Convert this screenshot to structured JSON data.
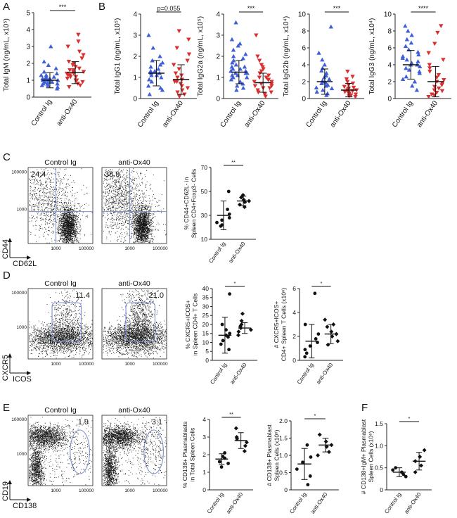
{
  "figure": {
    "panel_labels": [
      "A",
      "B",
      "C",
      "D",
      "E",
      "F"
    ],
    "colors": {
      "control": "#3f5fd8",
      "treated": "#d83030",
      "black": "#111111",
      "gate": "#7d8fcf"
    }
  },
  "chart_data": [
    {
      "panel": "A",
      "type": "scatter",
      "ylabel": "Total IgM (ng/mL, x10⁵)",
      "categories": [
        "Control Ig",
        "anti-Ox40"
      ],
      "ylim": [
        0,
        5
      ],
      "yticks": [
        "0",
        "1",
        "2",
        "3",
        "4",
        "5"
      ],
      "series": [
        {
          "name": "Control Ig",
          "color": "#3f5fd8",
          "marker": "triangle-up",
          "mean": 1.0,
          "sd": 0.45,
          "values": [
            0.5,
            0.6,
            0.7,
            0.7,
            0.8,
            0.8,
            0.8,
            0.9,
            0.9,
            0.9,
            1.0,
            1.0,
            1.0,
            1.0,
            1.1,
            1.1,
            1.1,
            1.2,
            1.2,
            1.3,
            1.3,
            1.4,
            1.5,
            1.7,
            1.9,
            2.1,
            3.0
          ]
        },
        {
          "name": "anti-Ox40",
          "color": "#d83030",
          "marker": "triangle-down",
          "mean": 1.45,
          "sd": 0.65,
          "values": [
            0.6,
            0.7,
            0.8,
            0.9,
            1.0,
            1.0,
            1.1,
            1.2,
            1.2,
            1.3,
            1.3,
            1.4,
            1.4,
            1.5,
            1.5,
            1.6,
            1.6,
            1.7,
            1.8,
            1.9,
            2.0,
            2.1,
            2.3,
            2.5,
            2.7,
            3.0,
            3.3,
            3.7
          ]
        }
      ],
      "significance": "***"
    },
    {
      "panel": "B1",
      "type": "scatter",
      "ylabel": "Total IgG1 (ng/mL, x10⁵)",
      "categories": [
        "Control Ig",
        "anti-Ox40"
      ],
      "ylim": [
        0,
        4
      ],
      "yticks": [
        "0",
        "1",
        "2",
        "3",
        "4"
      ],
      "series": [
        {
          "name": "Control Ig",
          "color": "#3f5fd8",
          "marker": "triangle-up",
          "mean": 1.2,
          "sd": 0.6,
          "values": [
            0.2,
            0.4,
            0.5,
            0.6,
            0.8,
            0.9,
            1.0,
            1.1,
            1.1,
            1.2,
            1.2,
            1.3,
            1.3,
            1.4,
            1.5,
            1.6,
            1.7,
            1.8,
            2.0,
            2.4,
            3.0
          ]
        },
        {
          "name": "anti-Ox40",
          "color": "#d83030",
          "marker": "triangle-down",
          "mean": 0.9,
          "sd": 0.7,
          "values": [
            0.1,
            0.2,
            0.3,
            0.4,
            0.5,
            0.6,
            0.7,
            0.8,
            0.8,
            0.9,
            1.0,
            1.1,
            1.2,
            1.4,
            1.6,
            1.8,
            2.1,
            2.4,
            2.8,
            3.2
          ]
        }
      ],
      "significance": "p=0.055"
    },
    {
      "panel": "B2",
      "type": "scatter",
      "ylabel": "Total IgG2a (ng/mL, x10⁵)",
      "categories": [
        "Control Ig",
        "anti-Ox40"
      ],
      "ylim": [
        0,
        4
      ],
      "yticks": [
        "0",
        "1",
        "2",
        "3",
        "4"
      ],
      "series": [
        {
          "name": "Control Ig",
          "color": "#3f5fd8",
          "marker": "triangle-up",
          "mean": 1.25,
          "sd": 0.55,
          "values": [
            0.4,
            0.5,
            0.6,
            0.7,
            0.8,
            0.9,
            1.0,
            1.0,
            1.1,
            1.1,
            1.2,
            1.2,
            1.2,
            1.3,
            1.3,
            1.4,
            1.4,
            1.5,
            1.5,
            1.6,
            1.7,
            1.8,
            1.9,
            2.0,
            2.1,
            2.3,
            2.5,
            2.6,
            2.8,
            3.6
          ]
        },
        {
          "name": "anti-Ox40",
          "color": "#d83030",
          "marker": "triangle-down",
          "mean": 0.75,
          "sd": 0.45,
          "values": [
            0.1,
            0.2,
            0.3,
            0.3,
            0.4,
            0.5,
            0.5,
            0.6,
            0.6,
            0.7,
            0.7,
            0.8,
            0.8,
            0.9,
            0.9,
            1.0,
            1.0,
            1.1,
            1.2,
            1.3,
            1.4,
            1.5,
            1.6,
            1.8,
            2.0,
            3.0
          ]
        }
      ],
      "significance": "***"
    },
    {
      "panel": "B3",
      "type": "scatter",
      "ylabel": "Total IgG2b (ng/mL, x10⁴)",
      "categories": [
        "Control Ig",
        "anti-Ox40"
      ],
      "ylim": [
        0,
        10
      ],
      "yticks": [
        "0",
        "2",
        "4",
        "6",
        "8",
        "10"
      ],
      "series": [
        {
          "name": "Control Ig",
          "color": "#3f5fd8",
          "marker": "triangle-up",
          "mean": 2.0,
          "sd": 1.5,
          "values": [
            0.4,
            0.6,
            0.8,
            1.0,
            1.2,
            1.3,
            1.5,
            1.6,
            1.8,
            1.9,
            2.0,
            2.1,
            2.3,
            2.5,
            2.7,
            3.0,
            3.3,
            3.6,
            4.0,
            4.6,
            5.4,
            8.5
          ]
        },
        {
          "name": "anti-Ox40",
          "color": "#d83030",
          "marker": "triangle-down",
          "mean": 1.0,
          "sd": 0.8,
          "values": [
            0.2,
            0.3,
            0.4,
            0.5,
            0.6,
            0.7,
            0.8,
            0.9,
            1.0,
            1.0,
            1.1,
            1.2,
            1.3,
            1.4,
            1.6,
            1.8,
            2.0,
            2.3,
            2.6,
            3.2
          ]
        }
      ],
      "significance": "***"
    },
    {
      "panel": "B4",
      "type": "scatter",
      "ylabel": "Total IgG3 (ng/mL, x10⁴)",
      "categories": [
        "Control Ig",
        "anti-Ox40"
      ],
      "ylim": [
        0,
        10
      ],
      "yticks": [
        "0",
        "2",
        "4",
        "6",
        "8",
        "10"
      ],
      "series": [
        {
          "name": "Control Ig",
          "color": "#3f5fd8",
          "marker": "triangle-up",
          "mean": 4.0,
          "sd": 1.7,
          "values": [
            1.0,
            1.5,
            2.0,
            2.3,
            2.6,
            3.0,
            3.2,
            3.4,
            3.6,
            3.8,
            4.0,
            4.0,
            4.2,
            4.4,
            4.6,
            4.8,
            5.0,
            5.2,
            5.5,
            5.8,
            6.2,
            6.6,
            7.0,
            7.5,
            8.0,
            8.6
          ]
        },
        {
          "name": "anti-Ox40",
          "color": "#d83030",
          "marker": "triangle-down",
          "mean": 2.0,
          "sd": 1.8,
          "values": [
            0.2,
            0.4,
            0.5,
            0.7,
            0.9,
            1.0,
            1.2,
            1.4,
            1.6,
            1.8,
            2.0,
            2.2,
            2.5,
            2.8,
            3.2,
            3.6,
            4.0,
            4.6,
            5.4,
            6.5,
            7.8,
            8.6
          ]
        }
      ],
      "significance": "****"
    },
    {
      "panel": "C",
      "type": "flow-cytometry",
      "x_axis": "CD62L",
      "y_axis": "CD44",
      "xticks": [
        "1000",
        "100000"
      ],
      "yticks": [
        "1000",
        "100000"
      ],
      "plots": [
        {
          "title": "Control Ig",
          "gate_percent": "24.4"
        },
        {
          "title": "anti-Ox40",
          "gate_percent": "38.9"
        }
      ]
    },
    {
      "panel": "C-summary",
      "type": "scatter",
      "ylabel": "% CD44+CD62L- in Spleen CD4+Foxp3- Cells",
      "categories": [
        "Control Ig",
        "anti-Ox40"
      ],
      "ylim": [
        10,
        70
      ],
      "yticks": [
        "10",
        "30",
        "50",
        "70"
      ],
      "series": [
        {
          "name": "Control Ig",
          "color": "#111111",
          "marker": "circle",
          "mean": 30,
          "sd": 12,
          "values": [
            21,
            22,
            24,
            26,
            28,
            31,
            35,
            50
          ]
        },
        {
          "name": "anti-Ox40",
          "color": "#111111",
          "marker": "diamond",
          "mean": 42,
          "sd": 4,
          "values": [
            37,
            39,
            41,
            42,
            43,
            45,
            47
          ]
        }
      ],
      "significance": "**"
    },
    {
      "panel": "D",
      "type": "flow-cytometry",
      "x_axis": "ICOS",
      "y_axis": "CXCR5",
      "xticks": [
        "1000",
        "100000"
      ],
      "yticks": [
        "1000",
        "100000"
      ],
      "plots": [
        {
          "title": "Control Ig",
          "gate_percent": "11.4"
        },
        {
          "title": "anti-Ox40",
          "gate_percent": "21.0"
        }
      ]
    },
    {
      "panel": "D-summary-1",
      "type": "scatter",
      "ylabel": "% CXCR5+ICOS+ in Spleen CD4+ T Cells",
      "categories": [
        "Control Ig",
        "anti-Ox40"
      ],
      "ylim": [
        0,
        40
      ],
      "yticks": [
        "0",
        "5",
        "10",
        "15",
        "20",
        "25",
        "30",
        "35",
        "40"
      ],
      "series": [
        {
          "name": "Control Ig",
          "color": "#111111",
          "marker": "circle",
          "mean": 14,
          "sd": 10,
          "values": [
            6,
            9,
            11,
            13,
            14,
            15,
            17,
            20,
            37
          ]
        },
        {
          "name": "anti-Ox40",
          "color": "#111111",
          "marker": "diamond",
          "mean": 18,
          "sd": 3,
          "values": [
            14,
            16,
            17,
            18,
            19,
            20,
            22,
            26
          ]
        }
      ],
      "significance": "*"
    },
    {
      "panel": "D-summary-2",
      "type": "scatter",
      "ylabel": "# CXCR5+ICOS+ CD4+ Spleen T Cells (x10⁶)",
      "categories": [
        "Control Ig",
        "anti-Ox40"
      ],
      "ylim": [
        0,
        6
      ],
      "yticks": [
        "0",
        "2",
        "4",
        "6"
      ],
      "series": [
        {
          "name": "Control Ig",
          "color": "#111111",
          "marker": "circle",
          "mean": 1.6,
          "sd": 1.4,
          "values": [
            0.3,
            0.6,
            0.9,
            1.2,
            1.5,
            1.8,
            2.2,
            3.0,
            5.6
          ]
        },
        {
          "name": "anti-Ox40",
          "color": "#111111",
          "marker": "diamond",
          "mean": 2.2,
          "sd": 0.8,
          "values": [
            1.3,
            1.6,
            2.0,
            2.2,
            2.4,
            2.8,
            3.0,
            3.4
          ]
        }
      ],
      "significance": "*"
    },
    {
      "panel": "E",
      "type": "flow-cytometry",
      "x_axis": "CD138",
      "y_axis": "CD19",
      "xticks": [
        "1000",
        "100000"
      ],
      "yticks": [
        "1000",
        "100000"
      ],
      "plots": [
        {
          "title": "Control Ig",
          "gate_percent": "1.9"
        },
        {
          "title": "anti-Ox40",
          "gate_percent": "3.1"
        }
      ]
    },
    {
      "panel": "E-summary-1",
      "type": "scatter",
      "ylabel": "% CD138+ Plasmablasts in Total Spleen Cells",
      "categories": [
        "Control Ig",
        "anti-Ox40"
      ],
      "ylim": [
        0,
        4
      ],
      "yticks": [
        "0",
        "1",
        "2",
        "3",
        "4"
      ],
      "series": [
        {
          "name": "Control Ig",
          "color": "#111111",
          "marker": "circle",
          "mean": 1.75,
          "sd": 0.3,
          "values": [
            1.3,
            1.5,
            1.6,
            1.8,
            1.9,
            2.1
          ]
        },
        {
          "name": "anti-Ox40",
          "color": "#111111",
          "marker": "diamond",
          "mean": 2.8,
          "sd": 0.45,
          "values": [
            2.2,
            2.5,
            2.7,
            2.9,
            3.0,
            3.5
          ]
        }
      ],
      "significance": "**"
    },
    {
      "panel": "E-summary-2",
      "type": "scatter",
      "ylabel": "# CD138+ Plasmablast Spleen Cells (x10⁶)",
      "categories": [
        "Control Ig",
        "anti-Ox40"
      ],
      "ylim": [
        0,
        2.0
      ],
      "yticks": [
        "0",
        "0.5",
        "1.0",
        "1.5",
        "2.0"
      ],
      "series": [
        {
          "name": "Control Ig",
          "color": "#111111",
          "marker": "circle",
          "mean": 0.75,
          "sd": 0.45,
          "values": [
            0.15,
            0.4,
            0.6,
            0.8,
            0.95,
            1.3
          ]
        },
        {
          "name": "anti-Ox40",
          "color": "#111111",
          "marker": "diamond",
          "mean": 1.3,
          "sd": 0.2,
          "values": [
            1.0,
            1.1,
            1.25,
            1.3,
            1.4,
            1.6
          ]
        }
      ],
      "significance": "*"
    },
    {
      "panel": "F",
      "type": "scatter",
      "ylabel": "# CD138+IgM+ Plasmablast Spleen Cells (x10⁶)",
      "categories": [
        "Control Ig",
        "anti-Ox40"
      ],
      "ylim": [
        0,
        1.5
      ],
      "yticks": [
        "0",
        "0.5",
        "1.0",
        "1.5"
      ],
      "series": [
        {
          "name": "Control Ig",
          "color": "#111111",
          "marker": "circle",
          "mean": 0.4,
          "sd": 0.1,
          "values": [
            0.3,
            0.35,
            0.4,
            0.45,
            0.5
          ]
        },
        {
          "name": "anti-Ox40",
          "color": "#111111",
          "marker": "diamond",
          "mean": 0.65,
          "sd": 0.2,
          "values": [
            0.4,
            0.55,
            0.65,
            0.75,
            0.9
          ]
        }
      ],
      "significance": "*"
    }
  ]
}
